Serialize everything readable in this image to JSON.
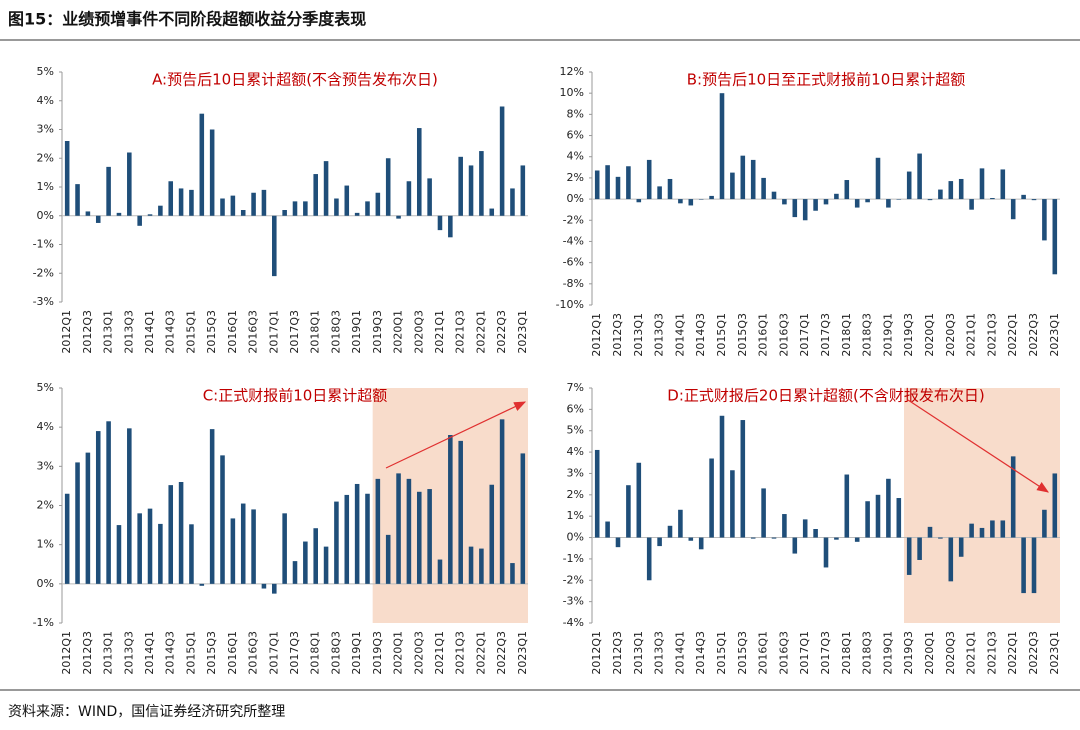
{
  "title": "图15：业绩预增事件不同阶段超额收益分季度表现",
  "source": "资料来源：WIND，国信证券经济研究所整理",
  "chart_data": [
    {
      "type": "bar",
      "title": "A:预告后10日累计超额(不含预告发布次日)",
      "color": "#1f4e79",
      "categories": [
        "2012Q1",
        null,
        "2012Q3",
        null,
        "2013Q1",
        null,
        "2013Q3",
        null,
        "2014Q1",
        null,
        "2014Q3",
        null,
        "2015Q1",
        null,
        "2015Q3",
        null,
        "2016Q1",
        null,
        "2016Q3",
        null,
        "2017Q1",
        null,
        "2017Q3",
        null,
        "2018Q1",
        null,
        "2018Q3",
        null,
        "2019Q1",
        null,
        "2019Q3",
        null,
        "2020Q1",
        null,
        "2020Q3",
        null,
        "2021Q1",
        null,
        "2021Q3",
        null,
        "2022Q1",
        null,
        "2022Q3",
        null,
        "2023Q1"
      ],
      "values": [
        2.6,
        1.1,
        0.15,
        -0.25,
        1.7,
        0.1,
        2.2,
        -0.35,
        0.05,
        0.35,
        1.2,
        0.95,
        0.9,
        3.55,
        3.0,
        0.6,
        0.7,
        0.2,
        0.8,
        0.9,
        -2.1,
        0.2,
        0.5,
        0.5,
        1.45,
        1.9,
        0.6,
        1.05,
        0.1,
        0.5,
        0.8,
        2.0,
        -0.1,
        1.2,
        3.05,
        1.3,
        -0.5,
        -0.75,
        2.05,
        1.75,
        2.25,
        0.25,
        3.8,
        0.95,
        1.75
      ],
      "ylim": [
        -3,
        5
      ],
      "yticks": [
        {
          "value": -3,
          "label": "-3%"
        },
        {
          "value": -2,
          "label": "-2%"
        },
        {
          "value": -1,
          "label": "-1%"
        },
        {
          "value": 0,
          "label": "0%"
        },
        {
          "value": 1,
          "label": "1%"
        },
        {
          "value": 2,
          "label": "2%"
        },
        {
          "value": 3,
          "label": "3%"
        },
        {
          "value": 4,
          "label": "4%"
        },
        {
          "value": 5,
          "label": "5%"
        }
      ]
    },
    {
      "type": "bar",
      "title": "B:预告后10日至正式财报前10日累计超额",
      "color": "#1f4e79",
      "categories": [
        "2012Q1",
        null,
        "2012Q3",
        null,
        "2013Q1",
        null,
        "2013Q3",
        null,
        "2014Q1",
        null,
        "2014Q3",
        null,
        "2015Q1",
        null,
        "2015Q3",
        null,
        "2016Q1",
        null,
        "2016Q3",
        null,
        "2017Q1",
        null,
        "2017Q3",
        null,
        "2018Q1",
        null,
        "2018Q3",
        null,
        "2019Q1",
        null,
        "2019Q3",
        null,
        "2020Q1",
        null,
        "2020Q3",
        null,
        "2021Q1",
        null,
        "2021Q3",
        null,
        "2022Q1",
        null,
        "2022Q3",
        null,
        "2023Q1"
      ],
      "values": [
        2.7,
        3.2,
        2.1,
        3.1,
        -0.3,
        3.7,
        1.2,
        1.9,
        -0.4,
        -0.6,
        0.0,
        0.3,
        10.0,
        2.5,
        4.1,
        3.7,
        2.0,
        0.7,
        -0.5,
        -1.7,
        -2.0,
        -1.1,
        -0.5,
        0.5,
        1.8,
        -0.8,
        -0.3,
        3.9,
        -0.8,
        0.0,
        2.6,
        4.3,
        -0.1,
        0.9,
        1.7,
        1.9,
        -1.0,
        2.9,
        0.1,
        2.8,
        -1.9,
        0.4,
        -0.1,
        -3.9,
        -7.1
      ],
      "ylim": [
        -10,
        12
      ],
      "yticks": [
        {
          "value": -10,
          "label": "-10%"
        },
        {
          "value": -8,
          "label": "-8%"
        },
        {
          "value": -6,
          "label": "-6%"
        },
        {
          "value": -4,
          "label": "-4%"
        },
        {
          "value": -2,
          "label": "-2%"
        },
        {
          "value": 0,
          "label": "0%"
        },
        {
          "value": 2,
          "label": "2%"
        },
        {
          "value": 4,
          "label": "4%"
        },
        {
          "value": 6,
          "label": "6%"
        },
        {
          "value": 8,
          "label": "8%"
        },
        {
          "value": 10,
          "label": "10%"
        },
        {
          "value": 12,
          "label": "12%"
        }
      ]
    },
    {
      "type": "bar",
      "title": "C:正式财报前10日累计超额",
      "color": "#1f4e79",
      "highlight": [
        "2019Q3",
        "2023Q1"
      ],
      "categories": [
        "2012Q1",
        null,
        "2012Q3",
        null,
        "2013Q1",
        null,
        "2013Q3",
        null,
        "2014Q1",
        null,
        "2014Q3",
        null,
        "2015Q1",
        null,
        "2015Q3",
        null,
        "2016Q1",
        null,
        "2016Q3",
        null,
        "2017Q1",
        null,
        "2017Q3",
        null,
        "2018Q1",
        null,
        "2018Q3",
        null,
        "2019Q1",
        null,
        "2019Q3",
        null,
        "2020Q1",
        null,
        "2020Q3",
        null,
        "2021Q1",
        null,
        "2021Q3",
        null,
        "2022Q1",
        null,
        "2022Q3",
        null,
        "2023Q1"
      ],
      "values": [
        2.3,
        3.1,
        3.35,
        3.9,
        4.15,
        1.5,
        3.97,
        1.8,
        1.92,
        1.53,
        2.52,
        2.6,
        1.52,
        -0.05,
        3.95,
        3.28,
        1.67,
        2.05,
        1.9,
        -0.12,
        -0.25,
        1.8,
        0.58,
        1.08,
        1.42,
        0.95,
        2.1,
        2.27,
        2.55,
        2.3,
        2.68,
        1.25,
        2.82,
        2.68,
        2.35,
        2.42,
        0.62,
        3.8,
        3.65,
        0.95,
        0.9,
        2.53,
        4.2,
        0.53,
        3.33
      ],
      "ylim": [
        -1,
        5
      ],
      "yticks": [
        {
          "value": -1,
          "label": "-1%"
        },
        {
          "value": 0,
          "label": "0%"
        },
        {
          "value": 1,
          "label": "1%"
        },
        {
          "value": 2,
          "label": "2%"
        },
        {
          "value": 3,
          "label": "3%"
        },
        {
          "value": 4,
          "label": "4%"
        },
        {
          "value": 5,
          "label": "5%"
        }
      ]
    },
    {
      "type": "bar",
      "title": "D:正式财报后20日累计超额(不含财报发布次日)",
      "color": "#1f4e79",
      "highlight": [
        "2019Q3",
        "2023Q1"
      ],
      "categories": [
        "2012Q1",
        null,
        "2012Q3",
        null,
        "2013Q1",
        null,
        "2013Q3",
        null,
        "2014Q1",
        null,
        "2014Q3",
        null,
        "2015Q1",
        null,
        "2015Q3",
        null,
        "2016Q1",
        null,
        "2016Q3",
        null,
        "2017Q1",
        null,
        "2017Q3",
        null,
        "2018Q1",
        null,
        "2018Q3",
        null,
        "2019Q1",
        null,
        "2019Q3",
        null,
        "2020Q1",
        null,
        "2020Q3",
        null,
        "2021Q1",
        null,
        "2021Q3",
        null,
        "2022Q1",
        null,
        "2022Q3",
        null,
        "2023Q1"
      ],
      "values": [
        4.1,
        0.75,
        -0.45,
        2.45,
        3.5,
        -2.0,
        -0.4,
        0.55,
        1.3,
        -0.15,
        -0.55,
        3.7,
        5.7,
        3.15,
        5.5,
        -0.05,
        2.3,
        -0.05,
        1.1,
        -0.75,
        0.85,
        0.4,
        -1.4,
        -0.1,
        2.95,
        -0.2,
        1.7,
        2.0,
        2.75,
        1.85,
        -1.75,
        -1.05,
        0.5,
        -0.05,
        -2.05,
        -0.9,
        0.65,
        0.45,
        0.8,
        0.8,
        3.8,
        -2.6,
        -2.6,
        1.3,
        3.0
      ],
      "ylim": [
        -4,
        7
      ],
      "yticks": [
        {
          "value": -4,
          "label": "-4%"
        },
        {
          "value": -3,
          "label": "-3%"
        },
        {
          "value": -2,
          "label": "-2%"
        },
        {
          "value": -1,
          "label": "-1%"
        },
        {
          "value": 0,
          "label": "0%"
        },
        {
          "value": 1,
          "label": "1%"
        },
        {
          "value": 2,
          "label": "2%"
        },
        {
          "value": 3,
          "label": "3%"
        },
        {
          "value": 4,
          "label": "4%"
        },
        {
          "value": 5,
          "label": "5%"
        },
        {
          "value": 6,
          "label": "6%"
        },
        {
          "value": 7,
          "label": "7%"
        }
      ]
    }
  ]
}
